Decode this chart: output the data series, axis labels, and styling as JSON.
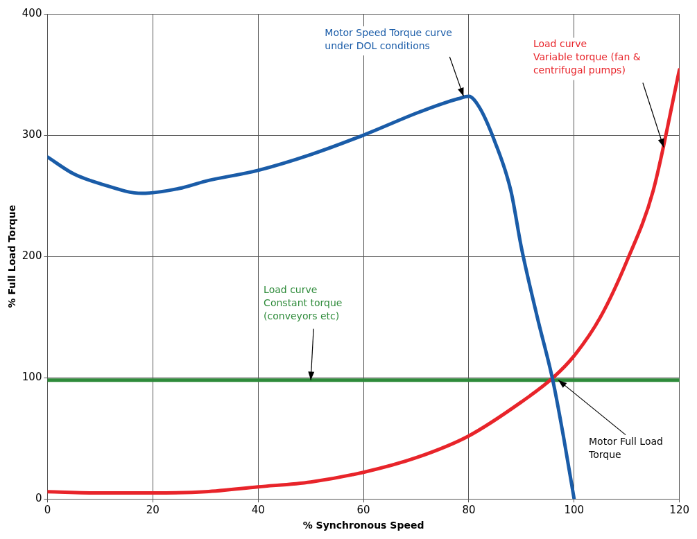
{
  "chart_data": {
    "type": "line",
    "xlabel": "% Synchronous Speed",
    "ylabel": "% Full Load Torque",
    "xlim": [
      0,
      120
    ],
    "xticks": [
      0,
      20,
      40,
      60,
      80,
      100,
      120
    ],
    "ylim": [
      0,
      400
    ],
    "yticks": [
      0,
      100,
      200,
      300,
      400
    ],
    "grid": true,
    "legend": false,
    "marker": "none",
    "line_style": "solid",
    "series": [
      {
        "color": "#1a5ca8",
        "x": [
          0,
          5,
          10,
          18,
          25,
          30,
          40,
          50,
          60,
          70,
          75,
          78,
          80,
          82,
          85,
          88,
          90,
          93,
          96,
          98,
          100
        ],
        "values": [
          282,
          268,
          260,
          252,
          256,
          262,
          271,
          284,
          300,
          318,
          326,
          330,
          332,
          323,
          294,
          254,
          207,
          150,
          97,
          51,
          0
        ]
      },
      {
        "color": "#e8242a",
        "x": [
          0,
          10,
          20,
          30,
          40,
          50,
          60,
          70,
          80,
          90,
          96,
          100,
          105,
          110,
          115,
          120
        ],
        "values": [
          6,
          5,
          5,
          6,
          10,
          14,
          22,
          34,
          52,
          80,
          100,
          118,
          150,
          196,
          254,
          354
        ]
      },
      {
        "color": "#2e8b3a",
        "x": [
          0,
          120
        ],
        "values": [
          98,
          98
        ]
      }
    ],
    "annotations": [
      {
        "text": "Motor Speed Torque curve\nunder DOL conditions",
        "x": 79,
        "y": 332
      },
      {
        "text": "Load curve\nVariable torque (fan &\ncentrifugal pumps)",
        "x": 117,
        "y": 290
      },
      {
        "text": "Load curve\nConstant torque\n(conveyors etc)",
        "x": 50,
        "y": 98
      },
      {
        "text": "Motor Full Load\nTorque",
        "x": 97,
        "y": 98
      }
    ]
  }
}
